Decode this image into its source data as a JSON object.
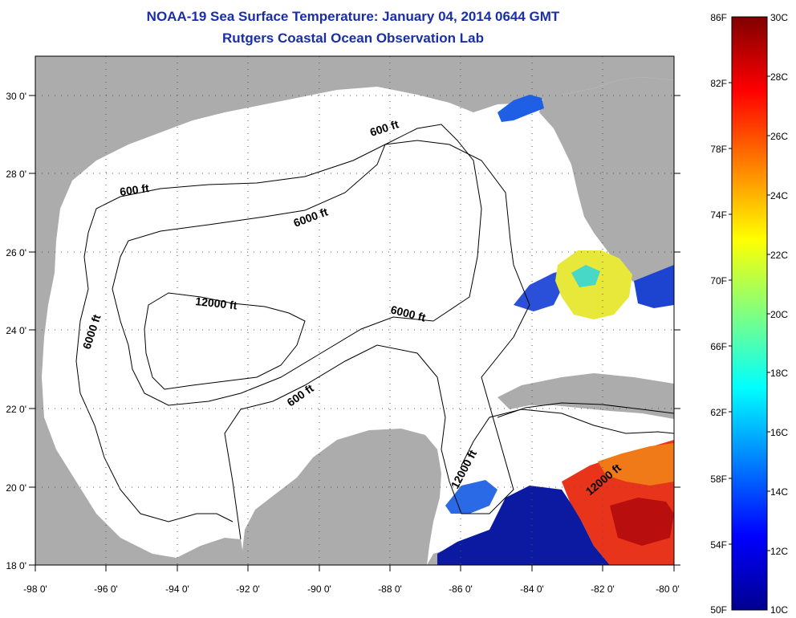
{
  "title": {
    "line1": "NOAA-19 Sea Surface Temperature:  January 04, 2014 0644 GMT",
    "line2": "Rutgers Coastal Ocean Observation Lab"
  },
  "map": {
    "lon_range": [
      -98,
      -80
    ],
    "lat_range": [
      18,
      31
    ],
    "lon_ticks": [
      "-98 0'",
      "-96 0'",
      "-94 0'",
      "-92 0'",
      "-90 0'",
      "-88 0'",
      "-86 0'",
      "-84 0'",
      "-82 0'",
      "-80 0'"
    ],
    "lat_ticks": [
      "18 0'",
      "20 0'",
      "22 0'",
      "24 0'",
      "26 0'",
      "28 0'",
      "30 0'"
    ],
    "land_color": "#acacac",
    "ocean_color": "#ffffff"
  },
  "contour_labels": [
    "600 ft",
    "600 ft",
    "6000 ft",
    "12000 ft",
    "6000 ft",
    "6000 ft",
    "600 ft",
    "12000 ft",
    "12000 ft"
  ],
  "colorbar": {
    "fahrenheit_labels": [
      "86F",
      "82F",
      "78F",
      "74F",
      "70F",
      "66F",
      "62F",
      "58F",
      "54F",
      "50F"
    ],
    "celsius_labels": [
      "30C",
      "28C",
      "26C",
      "24C",
      "22C",
      "20C",
      "18C",
      "16C",
      "14C",
      "12C",
      "10C"
    ],
    "gradient": [
      "#00008f",
      "#0000ff",
      "#0080ff",
      "#00ffff",
      "#80ff80",
      "#ffff00",
      "#ff8000",
      "#ff0000",
      "#800000"
    ]
  }
}
